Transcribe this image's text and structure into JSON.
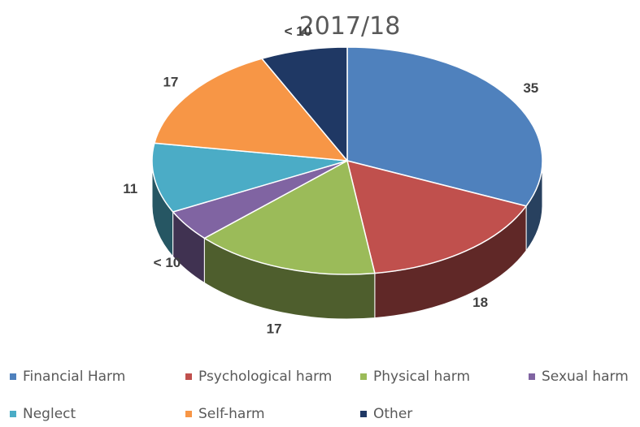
{
  "chart_data": {
    "type": "pie",
    "title": "2017/18",
    "categories": [
      "Financial Harm",
      "Psychological harm",
      "Physical harm",
      "Sexual harm",
      "Neglect",
      "Self-harm",
      "Other"
    ],
    "values": [
      35,
      18,
      17,
      5,
      11,
      17,
      8
    ],
    "data_labels": [
      "35",
      "18",
      "17",
      "< 10",
      "11",
      "17",
      "< 10"
    ],
    "colors": [
      "#4F81BD",
      "#C0504D",
      "#9BBB59",
      "#8064A2",
      "#4BACC6",
      "#F79646",
      "#1F3864"
    ],
    "legend_position": "bottom"
  }
}
